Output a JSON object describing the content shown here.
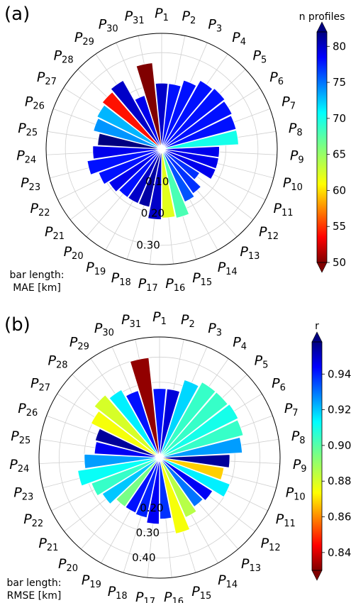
{
  "chart_data": [
    {
      "type": "polar-bar",
      "panel_label": "(a)",
      "note_lines": [
        "bar length:",
        "MAE [km]"
      ],
      "categories": [
        "P1",
        "P2",
        "P3",
        "P4",
        "P5",
        "P6",
        "P7",
        "P8",
        "P9",
        "P10",
        "P11",
        "P12",
        "P13",
        "P14",
        "P15",
        "P16",
        "P17",
        "P18",
        "P19",
        "P20",
        "P21",
        "P22",
        "P23",
        "P24",
        "P25",
        "P26",
        "P27",
        "P28",
        "P29",
        "P30",
        "P31"
      ],
      "radial_ticks": [
        "0.10",
        "0.20",
        "0.30"
      ],
      "radial_tick_values": [
        0.1,
        0.2,
        0.3
      ],
      "rmax": 0.36,
      "values": [
        0.205,
        0.205,
        0.225,
        0.245,
        0.25,
        0.245,
        0.24,
        0.24,
        0.18,
        0.18,
        0.18,
        0.14,
        0.17,
        0.18,
        0.22,
        0.215,
        0.22,
        0.185,
        0.185,
        0.185,
        0.195,
        0.21,
        0.235,
        0.215,
        0.2,
        0.22,
        0.225,
        0.235,
        0.245,
        0.175,
        0.27
      ],
      "color_values": [
        80,
        78,
        78,
        78,
        78,
        78,
        78,
        70,
        79,
        79,
        79,
        77,
        77,
        76,
        68,
        62,
        80,
        81,
        80,
        78,
        79,
        78,
        78,
        79,
        82,
        74,
        73,
        54,
        80,
        79,
        50
      ],
      "colorbar": {
        "title": "n profiles",
        "ticks": [
          50,
          55,
          60,
          65,
          70,
          75,
          80
        ],
        "min": 50,
        "max": 82,
        "reverse": false
      }
    },
    {
      "type": "polar-bar",
      "panel_label": "(b)",
      "note_lines": [
        "bar length:",
        "RMSE [km]"
      ],
      "categories": [
        "P1",
        "P2",
        "P3",
        "P4",
        "P5",
        "P6",
        "P7",
        "P8",
        "P9",
        "P10",
        "P11",
        "P12",
        "P13",
        "P14",
        "P15",
        "P16",
        "P17",
        "P18",
        "P19",
        "P20",
        "P21",
        "P22",
        "P23",
        "P24",
        "P25",
        "P26",
        "P27",
        "P28",
        "P29",
        "P30",
        "P31"
      ],
      "radial_ticks": [
        "0.20",
        "0.30",
        "0.40"
      ],
      "radial_tick_values": [
        0.2,
        0.3,
        0.4
      ],
      "rmax": 0.48,
      "values": [
        0.275,
        0.275,
        0.325,
        0.345,
        0.345,
        0.35,
        0.345,
        0.33,
        0.28,
        0.26,
        0.3,
        0.25,
        0.24,
        0.26,
        0.31,
        0.245,
        0.265,
        0.245,
        0.24,
        0.24,
        0.27,
        0.29,
        0.33,
        0.3,
        0.26,
        0.265,
        0.305,
        0.33,
        0.31,
        0.28,
        0.4
      ],
      "color_values": [
        0.942,
        0.948,
        0.918,
        0.905,
        0.905,
        0.91,
        0.905,
        0.925,
        0.955,
        0.868,
        0.915,
        0.945,
        0.93,
        0.885,
        0.875,
        0.938,
        0.945,
        0.94,
        0.942,
        0.895,
        0.92,
        0.905,
        0.912,
        0.925,
        0.945,
        0.955,
        0.875,
        0.88,
        0.915,
        0.942,
        0.832
      ],
      "colorbar": {
        "title": "r",
        "ticks": [
          "0.84",
          "0.86",
          "0.88",
          "0.90",
          "0.92",
          "0.94"
        ],
        "tick_values": [
          0.84,
          0.86,
          0.88,
          0.9,
          0.92,
          0.94
        ],
        "min": 0.83,
        "max": 0.958,
        "reverse": false
      }
    }
  ]
}
